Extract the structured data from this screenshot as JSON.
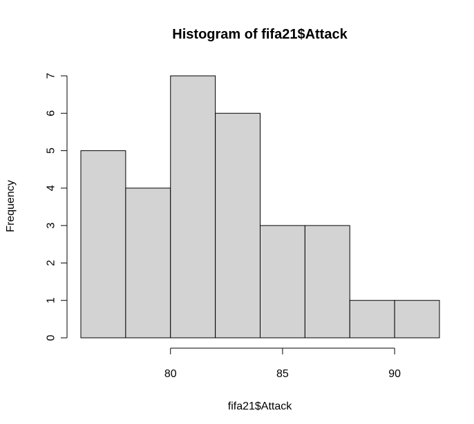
{
  "chart_data": {
    "type": "bar",
    "title": "Histogram of fifa21$Attack",
    "xlabel": "fifa21$Attack",
    "ylabel": "Frequency",
    "bins": [
      {
        "start": 76,
        "end": 78,
        "count": 5
      },
      {
        "start": 78,
        "end": 80,
        "count": 4
      },
      {
        "start": 80,
        "end": 82,
        "count": 7
      },
      {
        "start": 82,
        "end": 84,
        "count": 6
      },
      {
        "start": 84,
        "end": 86,
        "count": 3
      },
      {
        "start": 86,
        "end": 88,
        "count": 3
      },
      {
        "start": 88,
        "end": 90,
        "count": 1
      },
      {
        "start": 90,
        "end": 92,
        "count": 1
      }
    ],
    "x_ticks": [
      "80",
      "85",
      "90"
    ],
    "y_ticks": [
      "0",
      "1",
      "2",
      "3",
      "4",
      "5",
      "6",
      "7"
    ],
    "xlim": [
      76,
      92
    ],
    "ylim": [
      0,
      7
    ],
    "grid": false,
    "bar_color": "#d3d3d3"
  }
}
